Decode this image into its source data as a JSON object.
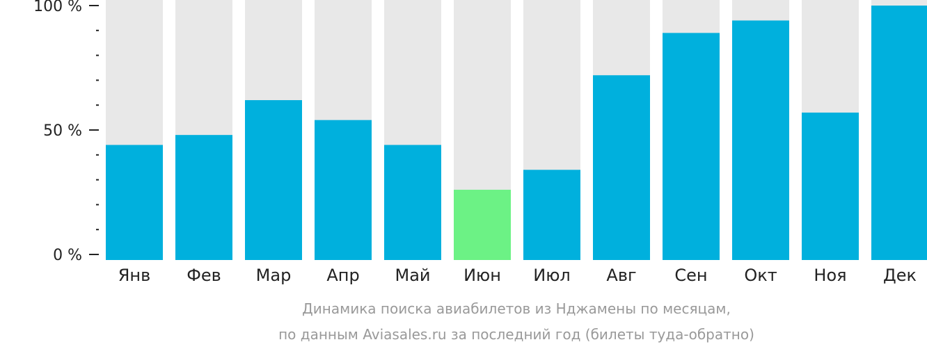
{
  "chart_data": {
    "type": "bar",
    "categories": [
      "Янв",
      "Фев",
      "Мар",
      "Апр",
      "Май",
      "Июн",
      "Июл",
      "Авг",
      "Сен",
      "Окт",
      "Ноя",
      "Дек"
    ],
    "values": [
      44,
      48,
      62,
      54,
      44,
      26,
      34,
      72,
      89,
      94,
      57,
      100
    ],
    "highlight_category": "Июн",
    "ylim": [
      0,
      100
    ],
    "yticks": [
      {
        "value": 0,
        "label": "0 %"
      },
      {
        "value": 50,
        "label": "50 %"
      },
      {
        "value": 100,
        "label": "100 %"
      }
    ],
    "minor_tick_step": 10,
    "caption": [
      "Динамика поиска авиабилетов из Нджамены по месяцам,",
      "по данным Aviasales.ru за последний год (билеты туда-обратно)"
    ],
    "grid": false,
    "legend": "none",
    "colors": {
      "bar": "#00b0dd",
      "highlight": "#6cf285",
      "background_bar": "#e8e8e8",
      "axis": "#222222",
      "caption": "#999999"
    }
  }
}
